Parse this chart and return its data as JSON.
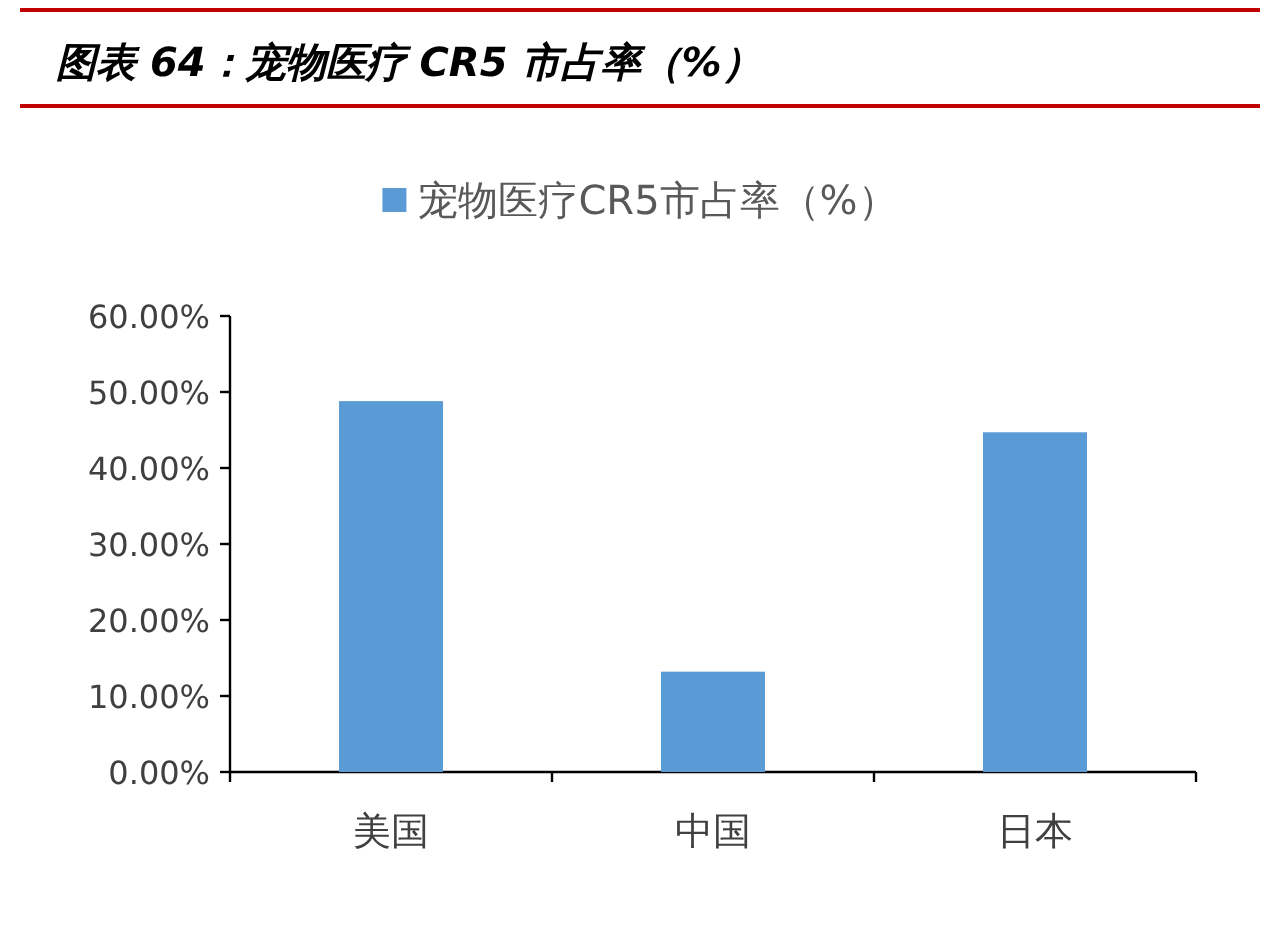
{
  "chart_data": {
    "type": "bar",
    "title": "图表 64：宠物医疗 CR5 市占率（%）",
    "categories": [
      "美国",
      "中国",
      "日本"
    ],
    "series": [
      {
        "name": "宠物医疗CR5市占率（%）",
        "color": "#5b9bd5",
        "values": [
          48.8,
          13.2,
          44.7
        ]
      }
    ],
    "ylim": [
      0,
      60
    ],
    "yticks": [
      {
        "value": 0,
        "label": "0.00%"
      },
      {
        "value": 10,
        "label": "10.00%"
      },
      {
        "value": 20,
        "label": "20.00%"
      },
      {
        "value": 30,
        "label": "30.00%"
      },
      {
        "value": 40,
        "label": "40.00%"
      },
      {
        "value": 50,
        "label": "50.00%"
      },
      {
        "value": 60,
        "label": "60.00%"
      }
    ],
    "legend": "top",
    "grid": false
  }
}
